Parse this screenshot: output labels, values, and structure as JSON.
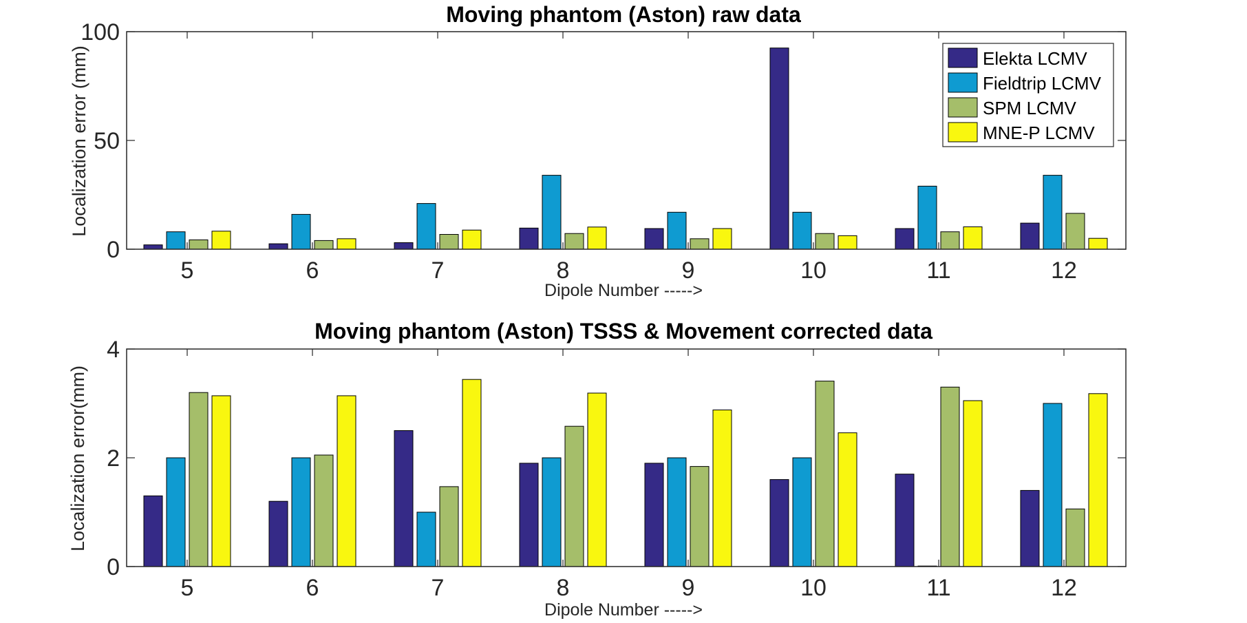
{
  "chart_data": [
    {
      "type": "bar",
      "title": "Moving phantom (Aston) raw data",
      "xlabel": "Dipole Number ----->",
      "ylabel": "Localization error (mm)",
      "categories": [
        "5",
        "6",
        "7",
        "8",
        "9",
        "10",
        "11",
        "12"
      ],
      "ylim": [
        0,
        100
      ],
      "yticks": [
        "0",
        "50",
        "100"
      ],
      "grid": false,
      "legend": "top-right",
      "series": [
        {
          "name": "Elekta LCMV",
          "color": "#352a87",
          "values": [
            2,
            2.5,
            3,
            9.7,
            9.5,
            92.5,
            9.5,
            12
          ]
        },
        {
          "name": "Fieldtrip LCMV",
          "color": "#0f9bd1",
          "values": [
            8,
            16,
            21,
            34,
            17,
            17,
            29,
            34
          ]
        },
        {
          "name": "SPM LCMV",
          "color": "#a5be6a",
          "values": [
            4.3,
            4,
            6.8,
            7.2,
            4.8,
            7.2,
            8,
            16.5
          ]
        },
        {
          "name": "MNE-P LCMV",
          "color": "#f9f70f",
          "values": [
            8.3,
            4.8,
            8.8,
            10.2,
            9.5,
            6.2,
            10.3,
            5
          ]
        }
      ]
    },
    {
      "type": "bar",
      "title": "Moving phantom (Aston) TSSS & Movement corrected data",
      "xlabel": "Dipole Number ----->",
      "ylabel": "Localization error(mm)",
      "categories": [
        "5",
        "6",
        "7",
        "8",
        "9",
        "10",
        "11",
        "12"
      ],
      "ylim": [
        0,
        4
      ],
      "yticks": [
        "0",
        "2",
        "4"
      ],
      "grid": false,
      "series": [
        {
          "name": "Elekta LCMV",
          "color": "#352a87",
          "values": [
            1.3,
            1.2,
            2.5,
            1.9,
            1.9,
            1.6,
            1.7,
            1.4
          ]
        },
        {
          "name": "Fieldtrip LCMV",
          "color": "#0f9bd1",
          "values": [
            2,
            2,
            1,
            2,
            2,
            2,
            0,
            3
          ]
        },
        {
          "name": "SPM LCMV",
          "color": "#a5be6a",
          "values": [
            3.2,
            2.05,
            1.47,
            2.58,
            1.84,
            3.41,
            3.3,
            1.06
          ]
        },
        {
          "name": "MNE-P LCMV",
          "color": "#f9f70f",
          "values": [
            3.14,
            3.14,
            3.44,
            3.19,
            2.88,
            2.46,
            3.05,
            3.18
          ]
        }
      ]
    }
  ]
}
